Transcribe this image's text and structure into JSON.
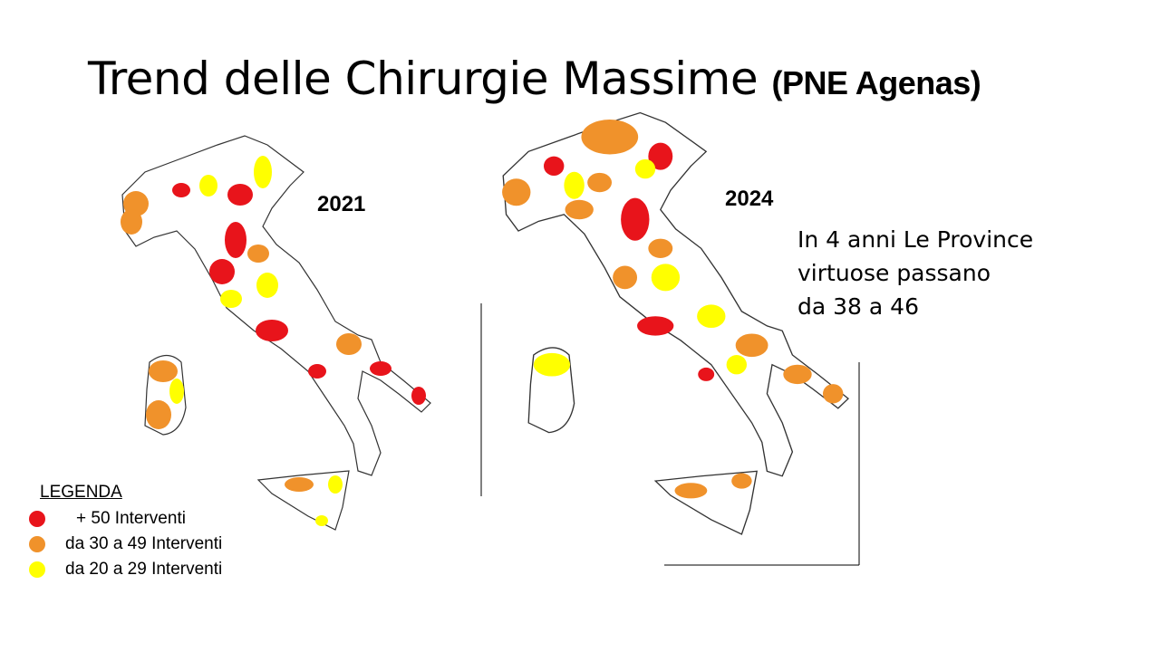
{
  "title": {
    "main": "Trend delle Chirurgie Massime",
    "source": "(PNE Agenas)"
  },
  "maps": [
    {
      "year": "2021"
    },
    {
      "year": "2024"
    }
  ],
  "note": [
    "In 4 anni Le Province",
    "virtuose passano",
    "da 38 a 46"
  ],
  "legend": {
    "title": "LEGENDA",
    "items": [
      {
        "label": "+ 50 Interventi",
        "color": "#e8141b"
      },
      {
        "label": "da 30 a 49  Interventi",
        "color": "#f0922b"
      },
      {
        "label": "da 20 a 29  Interventi",
        "color": "#ffff00"
      }
    ]
  }
}
